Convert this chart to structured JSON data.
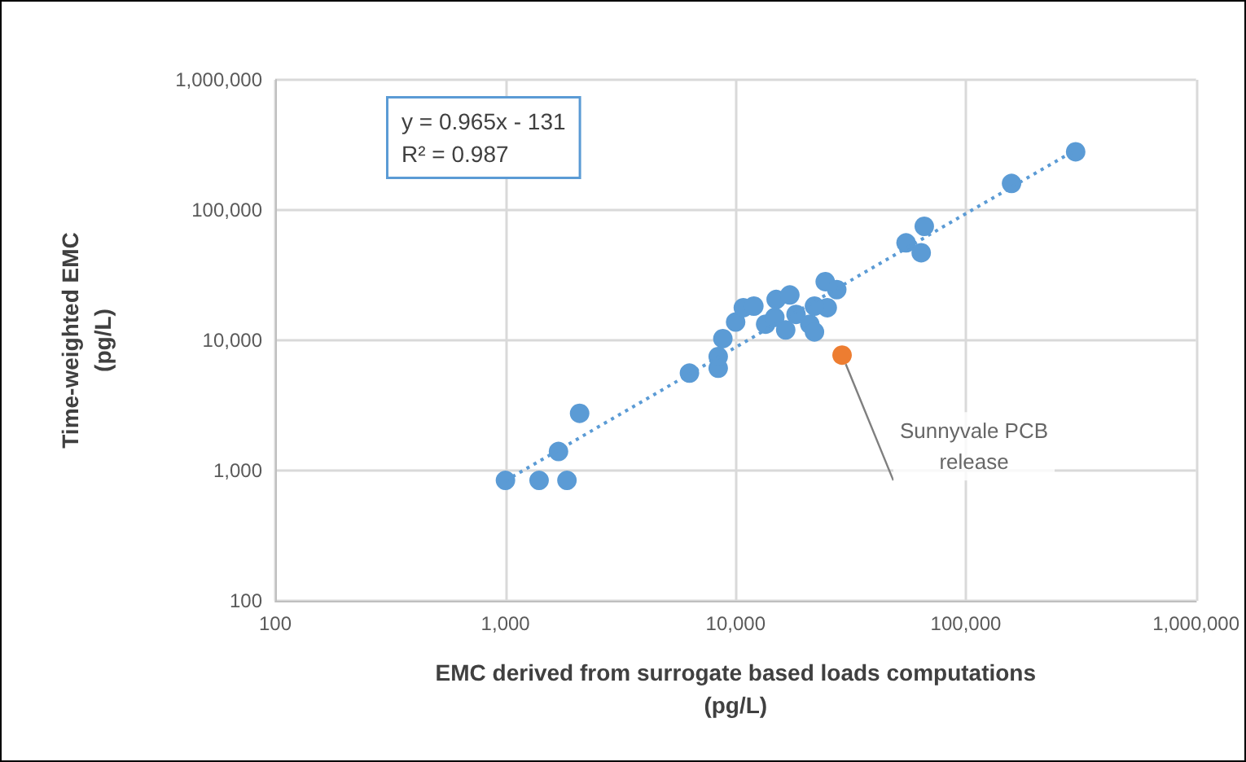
{
  "chart_data": {
    "type": "scatter",
    "xlabel": "EMC derived from surrogate based loads computations\n(pg/L)",
    "ylabel": "Time-weighted EMC\n(pg/L)",
    "log": "xy",
    "grid": true,
    "marker": "circle",
    "xlim": [
      100,
      1000000
    ],
    "ylim": [
      100,
      1000000
    ],
    "xticks": [
      {
        "value": 100,
        "label": "100"
      },
      {
        "value": 1000,
        "label": "1,000"
      },
      {
        "value": 10000,
        "label": "10,000"
      },
      {
        "value": 100000,
        "label": "100,000"
      },
      {
        "value": 1000000,
        "label": "1,000,000"
      }
    ],
    "yticks": [
      {
        "value": 100,
        "label": "100"
      },
      {
        "value": 1000,
        "label": "1,000"
      },
      {
        "value": 10000,
        "label": "10,000"
      },
      {
        "value": 100000,
        "label": "100,000"
      },
      {
        "value": 1000000,
        "label": "1,000,000"
      }
    ],
    "annotations": [
      "y = 0.965x - 131",
      "R² = 0.987",
      {
        "text": "Sunnyvale PCB\nrelease",
        "x": 29000,
        "y": 7700
      }
    ],
    "series": [
      {
        "color": "#5b9bd5",
        "x": [
          1000,
          1400,
          1850,
          1700,
          2100,
          6300,
          8400,
          8400,
          8800,
          10000,
          10800,
          12000,
          13500,
          15000,
          17200,
          16500,
          18300,
          21000,
          22000,
          24500,
          27500,
          25000,
          22000,
          14800,
          55000,
          66000,
          64000,
          158000,
          300000
        ],
        "values": [
          840,
          840,
          840,
          1400,
          2750,
          5600,
          6100,
          7500,
          10300,
          13800,
          17800,
          18300,
          13300,
          20600,
          22300,
          12000,
          15800,
          13300,
          11600,
          28200,
          24500,
          17800,
          18300,
          15000,
          56000,
          75000,
          47000,
          160000,
          280000
        ]
      },
      {
        "type": "scatter",
        "color": "#ed7d31",
        "x": [
          29000
        ],
        "values": [
          7700
        ]
      },
      {
        "type": "line",
        "color": "#5b9bd5",
        "line_style": "dotted",
        "marker": "none",
        "x": [
          1000,
          300000
        ],
        "values": [
          834,
          289369
        ]
      }
    ]
  }
}
